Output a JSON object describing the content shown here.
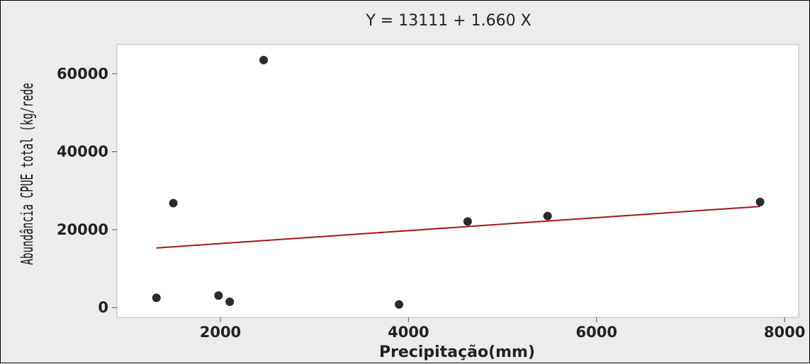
{
  "chart_data": {
    "type": "scatter",
    "title": "Y = 13111 + 1.660 X",
    "xlabel": "Precipitação(mm)",
    "ylabel": "Abundância CPUE  total (kg/rede",
    "xlim": [
      900,
      8150
    ],
    "ylim": [
      -2500,
      67500
    ],
    "x_ticks": [
      2000,
      4000,
      6000,
      8000
    ],
    "y_ticks": [
      0,
      20000,
      40000,
      60000
    ],
    "x_tick_labels": [
      "2000",
      "4000",
      "6000",
      "8000"
    ],
    "y_tick_labels": [
      "0",
      "20000",
      "40000",
      "60000"
    ],
    "grid": false,
    "points": [
      {
        "x": 1320,
        "y": 2500
      },
      {
        "x": 1500,
        "y": 26800
      },
      {
        "x": 1980,
        "y": 3100
      },
      {
        "x": 2100,
        "y": 1500
      },
      {
        "x": 2460,
        "y": 63500
      },
      {
        "x": 3900,
        "y": 800
      },
      {
        "x": 4630,
        "y": 22100
      },
      {
        "x": 5480,
        "y": 23500
      },
      {
        "x": 7740,
        "y": 27100
      }
    ],
    "fit": {
      "intercept": 13111,
      "slope": 1.66,
      "x_range": [
        1320,
        7740
      ]
    },
    "colors": {
      "points": "#2b2b2b",
      "fit_line": "#a31818",
      "plot_bg": "#ffffff",
      "figure_bg": "#ececec"
    }
  }
}
